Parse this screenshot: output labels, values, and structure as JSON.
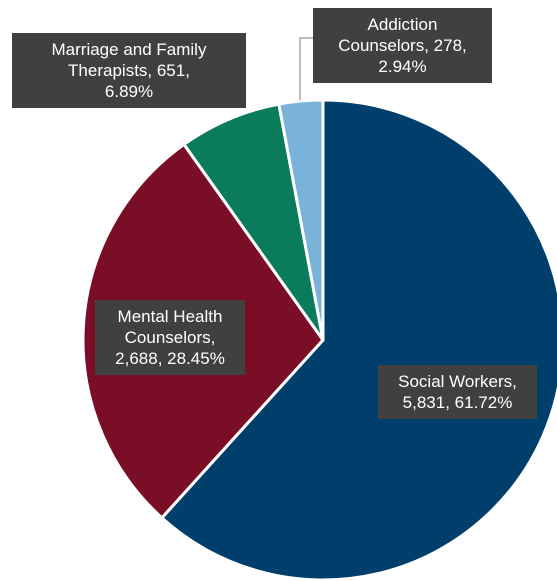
{
  "chart_data": {
    "type": "pie",
    "values": [
      5831,
      2688,
      651,
      278
    ],
    "value_labels": [
      "Social Workers,\n5,831, 61.72%",
      "Mental Health\nCounselors,\n2,688, 28.45%",
      "Marriage and Family\nTherapists, 651,\n6.89%",
      "Addiction\nCounselors, 278,\n2.94%"
    ],
    "colors": [
      "#003f6b",
      "#7a0e27",
      "#0a7c5c",
      "#7ab3d9"
    ]
  }
}
